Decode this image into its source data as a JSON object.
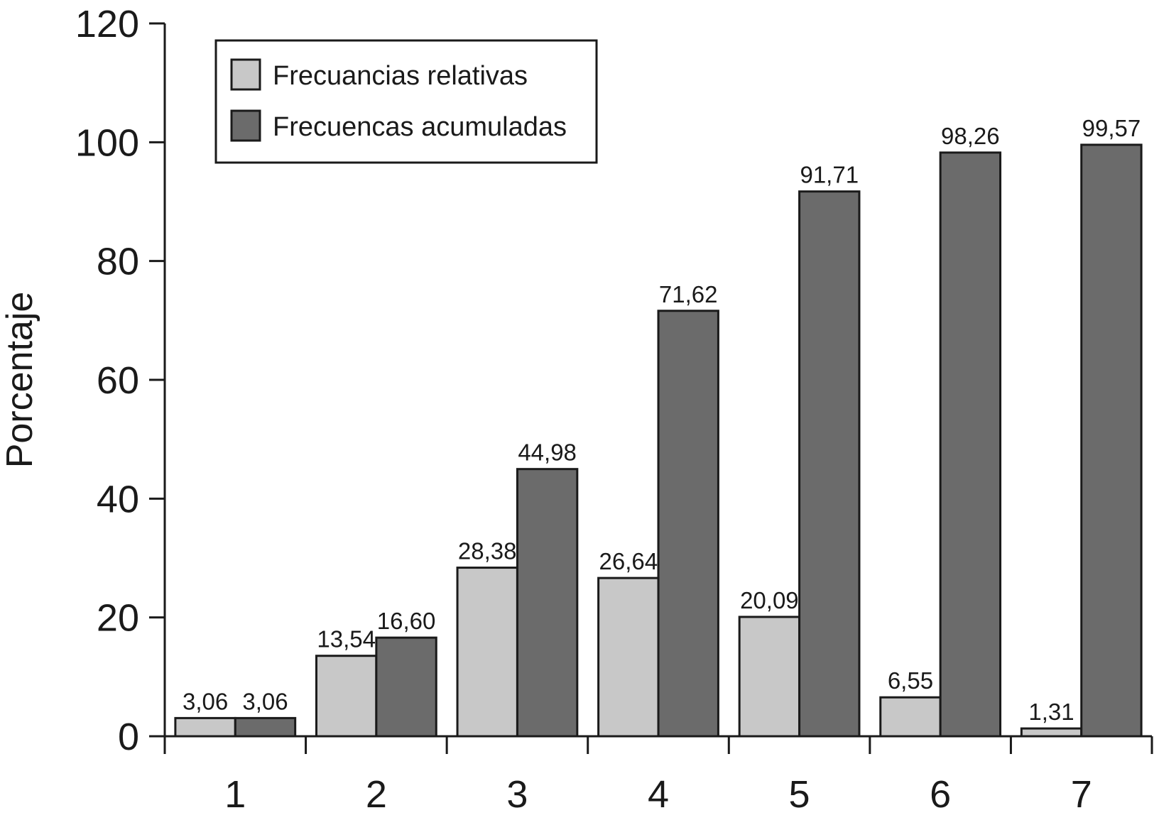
{
  "chart_data": {
    "type": "bar",
    "categories": [
      "1",
      "2",
      "3",
      "4",
      "5",
      "6",
      "7"
    ],
    "series": [
      {
        "name": "Frecuancias relativas",
        "color": "#c8c8c8",
        "values": [
          3.06,
          13.54,
          28.38,
          26.64,
          20.09,
          6.55,
          1.31
        ],
        "labels": [
          "3,06",
          "13,54",
          "28,38",
          "26,64",
          "20,09",
          "6,55",
          "1,31"
        ]
      },
      {
        "name": "Frecuencas acumuladas",
        "color": "#6b6b6b",
        "values": [
          3.06,
          16.6,
          44.98,
          71.62,
          91.71,
          98.26,
          99.57
        ],
        "labels": [
          "3,06",
          "16,60",
          "44,98",
          "71,62",
          "91,71",
          "98,26",
          "99,57"
        ]
      }
    ],
    "title": "",
    "xlabel": "",
    "ylabel": "Porcentaje",
    "ylim": [
      0,
      120
    ],
    "yticks": [
      0,
      20,
      40,
      60,
      80,
      100,
      120
    ],
    "ytick_labels": [
      "0",
      "20",
      "40",
      "60",
      "80",
      "100",
      "120"
    ],
    "grid": false,
    "legend_position": "top-left"
  }
}
